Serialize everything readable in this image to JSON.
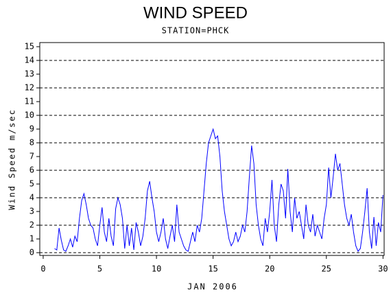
{
  "chart_data": {
    "type": "line",
    "title": "WIND SPEED",
    "subtitle": "STATION=PHCK",
    "x_label": "JAN 2006",
    "y_label": "Wind Speed m/sec",
    "xlim": [
      -0.3,
      30.1
    ],
    "ylim": [
      -0.2,
      15.3
    ],
    "xticks": [
      0,
      5,
      10,
      15,
      20,
      25,
      30
    ],
    "yticks": [
      0,
      1,
      2,
      3,
      4,
      5,
      6,
      7,
      8,
      9,
      10,
      11,
      12,
      13,
      14,
      15
    ],
    "grid": true,
    "grid_step": 2,
    "x": [
      1.0,
      1.2,
      1.4,
      1.6,
      1.8,
      2.0,
      2.2,
      2.4,
      2.6,
      2.8,
      3.0,
      3.2,
      3.4,
      3.6,
      3.8,
      4.0,
      4.2,
      4.4,
      4.6,
      4.8,
      5.0,
      5.2,
      5.4,
      5.6,
      5.8,
      6.0,
      6.2,
      6.4,
      6.6,
      6.8,
      7.0,
      7.2,
      7.4,
      7.6,
      7.8,
      8.0,
      8.2,
      8.4,
      8.6,
      8.8,
      9.0,
      9.2,
      9.4,
      9.6,
      9.8,
      10.0,
      10.2,
      10.4,
      10.6,
      10.8,
      11.0,
      11.2,
      11.4,
      11.6,
      11.8,
      12.0,
      12.2,
      12.4,
      12.6,
      12.8,
      13.0,
      13.2,
      13.4,
      13.6,
      13.8,
      14.0,
      14.2,
      14.4,
      14.6,
      14.8,
      15.0,
      15.2,
      15.4,
      15.6,
      15.8,
      16.0,
      16.2,
      16.4,
      16.6,
      16.8,
      17.0,
      17.2,
      17.4,
      17.6,
      17.8,
      18.0,
      18.2,
      18.4,
      18.6,
      18.8,
      19.0,
      19.2,
      19.4,
      19.6,
      19.8,
      20.0,
      20.2,
      20.4,
      20.6,
      20.8,
      21.0,
      21.2,
      21.4,
      21.6,
      21.8,
      22.0,
      22.2,
      22.4,
      22.6,
      22.8,
      23.0,
      23.2,
      23.4,
      23.6,
      23.8,
      24.0,
      24.2,
      24.4,
      24.6,
      24.8,
      25.0,
      25.2,
      25.4,
      25.6,
      25.8,
      26.0,
      26.2,
      26.4,
      26.6,
      26.8,
      27.0,
      27.2,
      27.4,
      27.6,
      27.8,
      28.0,
      28.2,
      28.4,
      28.6,
      28.8,
      29.0,
      29.2,
      29.4,
      29.6,
      29.8,
      30.0
    ],
    "series": [
      {
        "color": "#0000ff",
        "values": [
          0.3,
          0.2,
          1.8,
          0.9,
          0.2,
          0.1,
          0.5,
          1.0,
          0.4,
          1.2,
          0.8,
          2.5,
          3.8,
          4.3,
          3.5,
          2.5,
          2.0,
          1.8,
          1.0,
          0.5,
          2.0,
          3.3,
          1.5,
          0.8,
          2.5,
          1.2,
          0.5,
          3.2,
          4.0,
          3.5,
          2.5,
          0.3,
          2.0,
          0.5,
          1.8,
          0.2,
          2.2,
          1.5,
          0.5,
          1.2,
          2.5,
          4.5,
          5.2,
          4.0,
          3.0,
          1.5,
          0.8,
          1.5,
          2.5,
          1.0,
          0.3,
          1.2,
          2.0,
          0.8,
          3.5,
          1.5,
          1.0,
          0.5,
          0.2,
          0.1,
          0.8,
          1.5,
          0.8,
          2.0,
          1.5,
          2.5,
          4.5,
          6.5,
          8.0,
          8.5,
          9.0,
          8.3,
          8.5,
          7.0,
          4.5,
          3.0,
          2.0,
          1.0,
          0.5,
          0.8,
          1.5,
          0.8,
          1.2,
          2.0,
          1.5,
          3.0,
          5.5,
          7.8,
          6.5,
          3.5,
          2.0,
          1.0,
          0.5,
          2.5,
          1.5,
          3.0,
          5.3,
          2.0,
          0.8,
          3.5,
          5.0,
          4.5,
          2.5,
          6.1,
          3.0,
          1.5,
          4.0,
          2.5,
          3.0,
          2.0,
          1.0,
          3.5,
          2.0,
          1.5,
          2.8,
          1.2,
          2.0,
          1.5,
          1.0,
          2.5,
          3.5,
          6.2,
          4.0,
          5.5,
          7.2,
          6.0,
          6.5,
          5.0,
          3.5,
          2.5,
          2.0,
          2.8,
          1.5,
          0.5,
          0.1,
          0.3,
          1.5,
          3.0,
          4.7,
          1.5,
          0.3,
          2.6,
          0.5,
          2.2,
          1.5,
          4.2
        ]
      }
    ]
  }
}
